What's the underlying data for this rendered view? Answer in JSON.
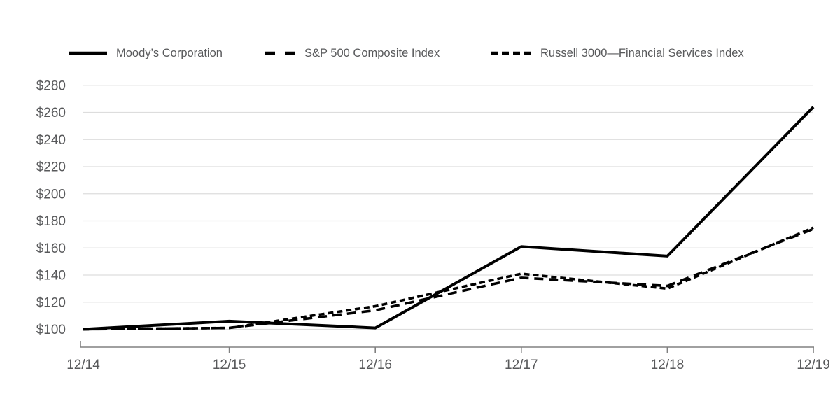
{
  "chart_data": {
    "type": "line",
    "title": "",
    "xlabel": "",
    "ylabel": "",
    "x_categories": [
      "12/14",
      "12/15",
      "12/16",
      "12/17",
      "12/18",
      "12/19"
    ],
    "y_ticks": {
      "values": [
        100,
        120,
        140,
        160,
        180,
        200,
        220,
        240,
        260,
        280
      ],
      "labels": [
        "$100",
        "$120",
        "$140",
        "$160",
        "$180",
        "$200",
        "$220",
        "$240",
        "$260",
        "$280"
      ]
    },
    "ylim": [
      100,
      280
    ],
    "grid": "horizontal-only",
    "legend_position": "top",
    "series": [
      {
        "name": "Moody’s Corporation",
        "style": "solid",
        "color": "#000000",
        "values": [
          100,
          106,
          101,
          161,
          154,
          264
        ]
      },
      {
        "name": "S&P 500 Composite Index",
        "style": "long-dash",
        "color": "#000000",
        "values": [
          100,
          101,
          114,
          138,
          132,
          174
        ]
      },
      {
        "name": "Russell 3000—Financial Services Index",
        "style": "short-dash",
        "color": "#000000",
        "values": [
          100,
          101,
          117,
          141,
          130,
          175
        ]
      }
    ],
    "colors": {
      "line": "#000000",
      "grid": "#DDDDDD",
      "axis": "#808080",
      "text": "#58595B",
      "background": "#FFFFFF"
    }
  }
}
